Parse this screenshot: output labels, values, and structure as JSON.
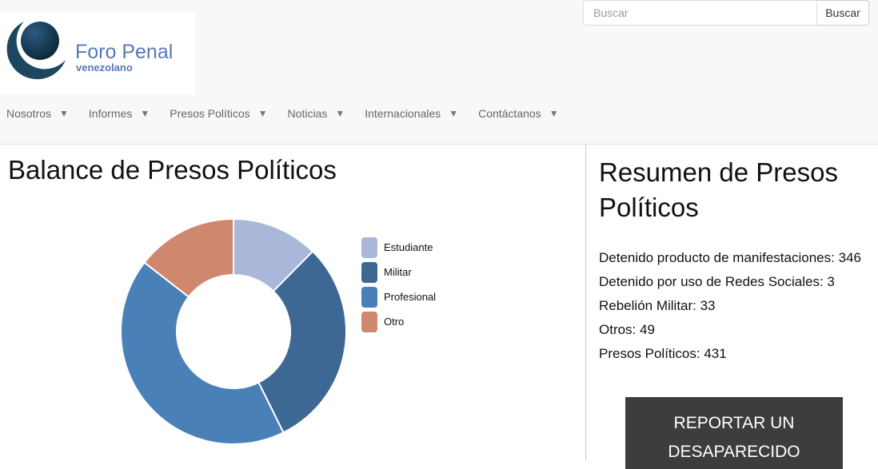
{
  "logo": {
    "text": "Foro Penal",
    "subtext": "venezolano"
  },
  "search": {
    "placeholder": "Buscar",
    "button_label": "Buscar"
  },
  "nav": [
    {
      "label": "Nosotros"
    },
    {
      "label": "Informes"
    },
    {
      "label": "Presos Políticos"
    },
    {
      "label": "Noticias"
    },
    {
      "label": "Internacionales"
    },
    {
      "label": "Contáctanos"
    }
  ],
  "nav_caret_icon": "▼",
  "left": {
    "title": "Balance de Presos Políticos"
  },
  "chart_data": {
    "type": "pie",
    "donut": true,
    "categories": [
      "Estudiante",
      "Militar",
      "Profesional",
      "Otro"
    ],
    "values": [
      12.4,
      30.3,
      42.8,
      14.5
    ],
    "unit": "percent (estimated)",
    "colors": [
      "#a9b8d8",
      "#3e6894",
      "#4a80b8",
      "#cf876d"
    ],
    "legend": "right"
  },
  "right": {
    "title": "Resumen de Presos Políticos",
    "stats": [
      "Detenido producto de manifestaciones: 346",
      "Detenido por uso de Redes Sociales: 3",
      "Rebelión Militar: 33",
      "Otros: 49",
      "Presos Políticos: 431"
    ],
    "report_button": "REPORTAR UN DESAPARECIDO"
  }
}
